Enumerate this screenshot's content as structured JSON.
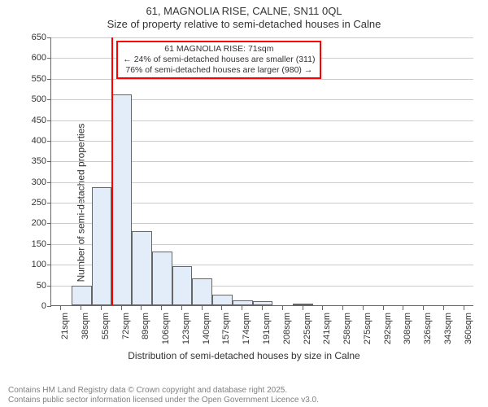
{
  "titles": {
    "line1": "61, MAGNOLIA RISE, CALNE, SN11 0QL",
    "line2": "Size of property relative to semi-detached houses in Calne"
  },
  "chart": {
    "type": "histogram",
    "y_axis": {
      "label": "Number of semi-detached properties",
      "min": 0,
      "max": 650,
      "step": 50
    },
    "x_axis": {
      "label": "Distribution of semi-detached houses by size in Calne",
      "labels": [
        "21sqm",
        "38sqm",
        "55sqm",
        "72sqm",
        "89sqm",
        "106sqm",
        "123sqm",
        "140sqm",
        "157sqm",
        "174sqm",
        "191sqm",
        "208sqm",
        "225sqm",
        "241sqm",
        "258sqm",
        "275sqm",
        "292sqm",
        "308sqm",
        "326sqm",
        "343sqm",
        "360sqm"
      ]
    },
    "bars": {
      "values": [
        0,
        48,
        285,
        510,
        180,
        130,
        95,
        65,
        25,
        12,
        9,
        0,
        4,
        0,
        0,
        0,
        0,
        0,
        0,
        0,
        0
      ],
      "fill": "#e3edf9",
      "border": "#666666",
      "border_width": 1
    },
    "marker": {
      "position_index": 3,
      "color": "#ff0000"
    },
    "annotation": {
      "line1": "61 MAGNOLIA RISE: 71sqm",
      "line2": "← 24% of semi-detached houses are smaller (311)",
      "line3": "76% of semi-detached houses are larger (980) →",
      "border_color": "#ff0000",
      "bg": "#ffffff"
    },
    "grid_color": "#cccccc",
    "axis_color": "#666666",
    "text_color": "#333333",
    "label_fontsize": 12,
    "tick_fontsize": 11,
    "annotation_fontsize": 10.5
  },
  "footer": {
    "line1": "Contains HM Land Registry data © Crown copyright and database right 2025.",
    "line2": "Contains public sector information licensed under the Open Government Licence v3.0."
  }
}
